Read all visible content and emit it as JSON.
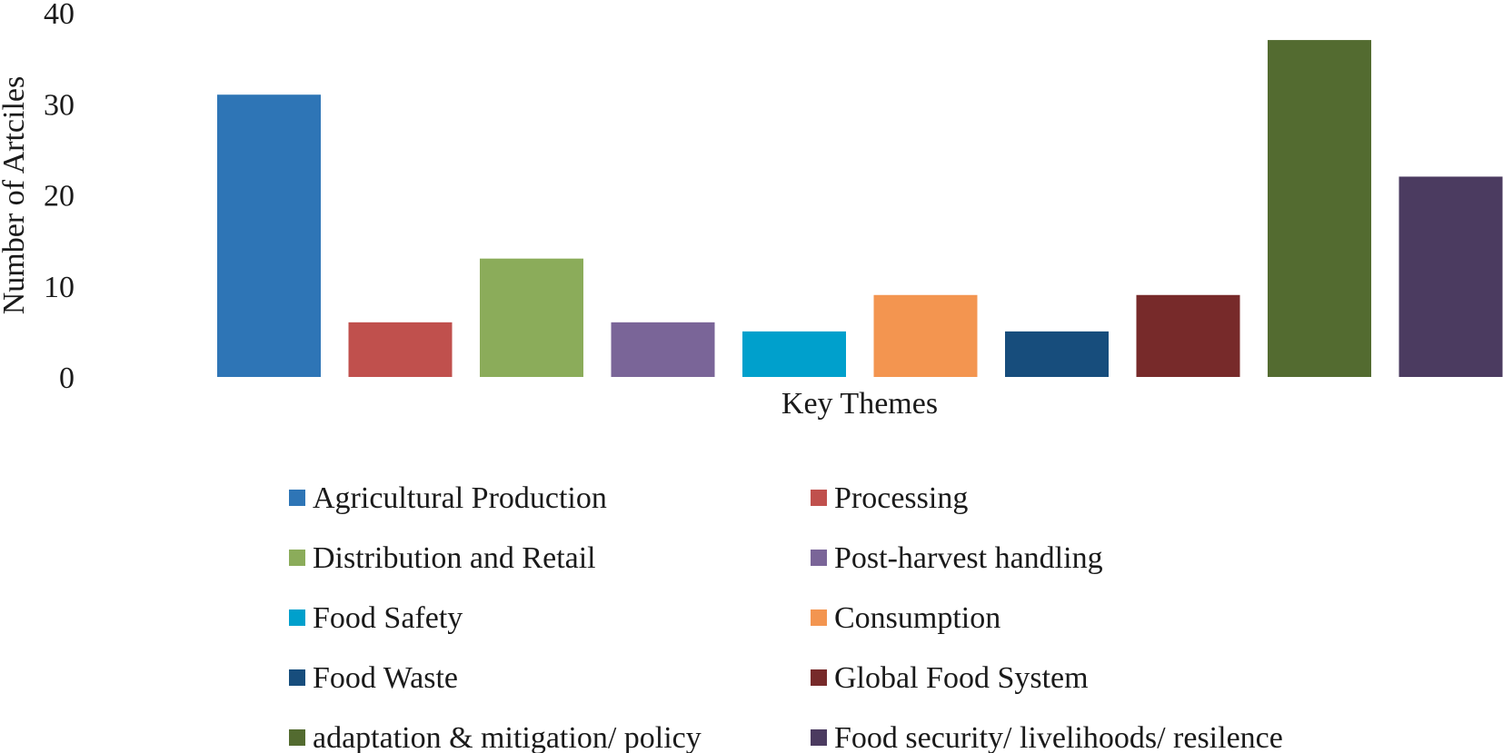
{
  "chart_data": {
    "type": "bar",
    "title": "",
    "xlabel": "Key Themes",
    "ylabel": "Number of Artciles",
    "ylim": [
      0,
      40
    ],
    "yticks": [
      0,
      10,
      20,
      30,
      40
    ],
    "grid": false,
    "legend_position": "bottom",
    "categories": [
      "Agricultural Production",
      "Processing",
      "Distribution and Retail",
      "Post-harvest handling",
      "Food Safety",
      "Consumption",
      "Food Waste",
      "Global Food System",
      "adaptation & mitigation/ policy",
      "Food security/ livelihoods/ resilence"
    ],
    "values": [
      31,
      6,
      13,
      6,
      5,
      9,
      5,
      9,
      37,
      22
    ],
    "colors": [
      "#2E75B6",
      "#C0504D",
      "#8BAC5A",
      "#7A6598",
      "#00A0CC",
      "#F39550",
      "#174D7C",
      "#772A2A",
      "#536B30",
      "#4B3B60"
    ]
  }
}
